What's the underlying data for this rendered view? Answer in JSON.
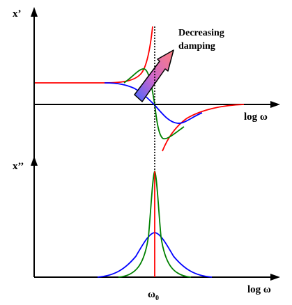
{
  "labels": {
    "upper_y": "x’",
    "lower_y": "x’’",
    "upper_x": "log ω",
    "lower_x": "log ω",
    "resonance_base": "ω",
    "resonance_sub": "0",
    "arrow_line1": "Decreasing",
    "arrow_line2": "damping"
  },
  "colors": {
    "low_damping": "#ff0000",
    "mid_damping": "#008000",
    "high_damping": "#0000ff",
    "axis": "#000000",
    "arrow_start": "#4466ff",
    "arrow_end": "#ff8080"
  },
  "curves": [
    {
      "color": "low_damping",
      "panel": "x’"
    },
    {
      "color": "mid_damping",
      "panel": "x’"
    },
    {
      "color": "high_damping",
      "panel": "x’"
    },
    {
      "color": "low_damping",
      "panel": "x’’"
    },
    {
      "color": "mid_damping",
      "panel": "x’’"
    },
    {
      "color": "high_damping",
      "panel": "x’’"
    }
  ]
}
